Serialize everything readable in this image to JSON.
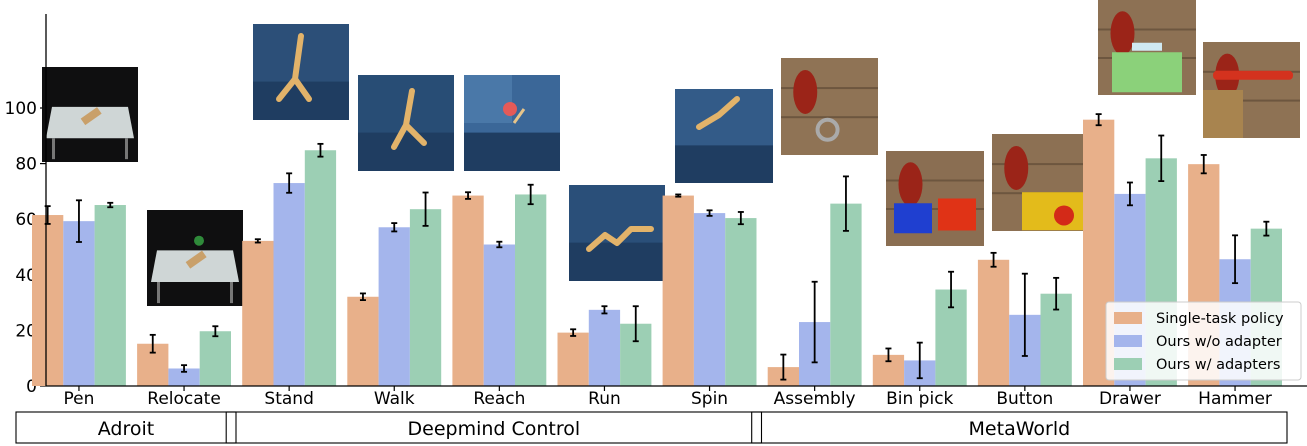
{
  "chart_data": {
    "type": "bar",
    "categories": [
      "Pen",
      "Relocate",
      "Stand",
      "Walk",
      "Reach",
      "Run",
      "Spin",
      "Assembly",
      "Bin pick",
      "Button",
      "Drawer",
      "Hammer"
    ],
    "groups": [
      {
        "label": "Adroit",
        "categories": [
          "Pen",
          "Relocate"
        ]
      },
      {
        "label": "Deepmind Control",
        "categories": [
          "Stand",
          "Walk",
          "Reach",
          "Run",
          "Spin"
        ]
      },
      {
        "label": "MetaWorld",
        "categories": [
          "Assembly",
          "Bin pick",
          "Button",
          "Drawer",
          "Hammer"
        ]
      }
    ],
    "series": [
      {
        "name": "Single-task policy",
        "color": "#e8b08a",
        "values": [
          61.5,
          15.2,
          52.2,
          32.1,
          68.5,
          19.2,
          68.5,
          6.8,
          11.2,
          45.4,
          95.8,
          79.8
        ],
        "errors": [
          3.2,
          3.2,
          0.6,
          1.2,
          1.2,
          1.2,
          0.4,
          4.5,
          2.3,
          2.5,
          2.0,
          3.3
        ]
      },
      {
        "name": "Ours w/o adapter",
        "color": "#a4b5ec",
        "values": [
          59.3,
          6.3,
          73.0,
          57.1,
          50.9,
          27.4,
          62.2,
          23.0,
          9.2,
          25.6,
          69.1,
          45.6
        ],
        "errors": [
          7.5,
          1.2,
          3.5,
          1.5,
          1.0,
          1.3,
          1.0,
          14.5,
          6.4,
          14.8,
          4.1,
          8.6
        ]
      },
      {
        "name": "Ours w/ adapters",
        "color": "#9ccfb4",
        "values": [
          65.1,
          19.7,
          84.8,
          63.6,
          68.9,
          22.4,
          60.4,
          65.6,
          34.7,
          33.2,
          81.9,
          56.6
        ],
        "errors": [
          0.8,
          1.8,
          2.3,
          6.0,
          3.5,
          6.3,
          2.2,
          9.8,
          6.4,
          5.7,
          8.2,
          2.5
        ]
      }
    ],
    "yticks": [
      0,
      20,
      40,
      60,
      80,
      100
    ],
    "ylim": [
      0,
      100
    ],
    "legend_position": "lower-right",
    "title": "",
    "xlabel": "",
    "ylabel": ""
  }
}
